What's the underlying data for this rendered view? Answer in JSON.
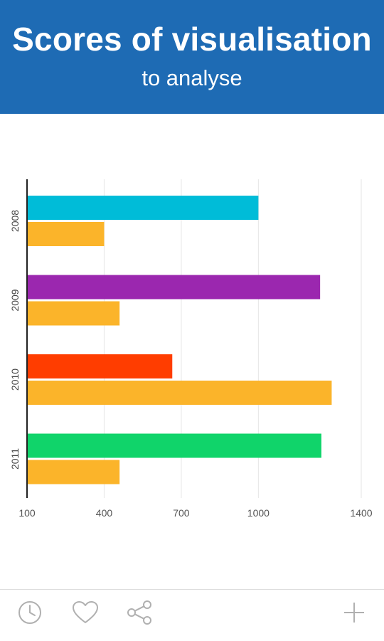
{
  "header": {
    "title": "Scores of visualisation",
    "subtitle": "to analyse"
  },
  "chart_data": {
    "type": "bar",
    "orientation": "horizontal",
    "categories": [
      "2008",
      "2009",
      "2010",
      "2011"
    ],
    "series": [
      {
        "values": [
          1000,
          1240,
          665,
          1245
        ],
        "colors": [
          "#00bcd8",
          "#9b27af",
          "#ff3d00",
          "#10d46a"
        ]
      },
      {
        "values": [
          400,
          460,
          1285,
          460
        ],
        "color": "#fbb42a"
      }
    ],
    "xticks": [
      "100",
      "400",
      "700",
      "1000",
      "1400"
    ],
    "xlim": [
      100,
      1400
    ],
    "grid": true
  },
  "footer": {
    "icons": [
      "clock-icon",
      "heart-icon",
      "share-icon",
      "plus-icon"
    ]
  }
}
